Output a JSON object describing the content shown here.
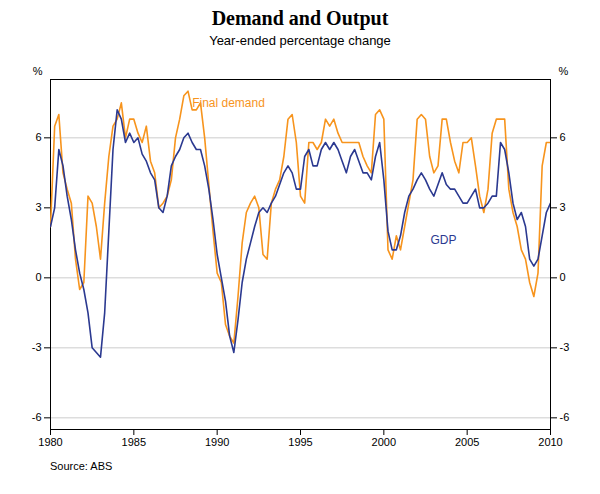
{
  "chart_data": {
    "type": "line",
    "title": "Demand and Output",
    "subtitle": "Year-ended percentage change",
    "source": "Source: ABS",
    "ylabel": "%",
    "y2label": "%",
    "xlim": [
      1980.0,
      2010.0
    ],
    "xticks": [
      1980,
      1985,
      1990,
      1995,
      2000,
      2005,
      2010
    ],
    "ylim": [
      -6.5,
      8.5
    ],
    "yticks": [
      -6,
      -3,
      0,
      3,
      6
    ],
    "y2lim": [
      -6.5,
      8.5
    ],
    "y2ticks": [
      -6,
      -3,
      0,
      3,
      6
    ],
    "grid": true,
    "x": [
      1980.0,
      1980.25,
      1980.5,
      1980.75,
      1981.0,
      1981.25,
      1981.5,
      1981.75,
      1982.0,
      1982.25,
      1982.5,
      1982.75,
      1983.0,
      1983.25,
      1983.5,
      1983.75,
      1984.0,
      1984.25,
      1984.5,
      1984.75,
      1985.0,
      1985.25,
      1985.5,
      1985.75,
      1986.0,
      1986.25,
      1986.5,
      1986.75,
      1987.0,
      1987.25,
      1987.5,
      1987.75,
      1988.0,
      1988.25,
      1988.5,
      1988.75,
      1989.0,
      1989.25,
      1989.5,
      1989.75,
      1990.0,
      1990.25,
      1990.5,
      1990.75,
      1991.0,
      1991.25,
      1991.5,
      1991.75,
      1992.0,
      1992.25,
      1992.5,
      1992.75,
      1993.0,
      1993.25,
      1993.5,
      1993.75,
      1994.0,
      1994.25,
      1994.5,
      1994.75,
      1995.0,
      1995.25,
      1995.5,
      1995.75,
      1996.0,
      1996.25,
      1996.5,
      1996.75,
      1997.0,
      1997.25,
      1997.5,
      1997.75,
      1998.0,
      1998.25,
      1998.5,
      1998.75,
      1999.0,
      1999.25,
      1999.5,
      1999.75,
      2000.0,
      2000.25,
      2000.5,
      2000.75,
      2001.0,
      2001.25,
      2001.5,
      2001.75,
      2002.0,
      2002.25,
      2002.5,
      2002.75,
      2003.0,
      2003.25,
      2003.5,
      2003.75,
      2004.0,
      2004.25,
      2004.5,
      2004.75,
      2005.0,
      2005.25,
      2005.5,
      2005.75,
      2006.0,
      2006.25,
      2006.5,
      2006.75,
      2007.0,
      2007.25,
      2007.5,
      2007.75,
      2008.0,
      2008.25,
      2008.5,
      2008.75,
      2009.0,
      2009.25,
      2009.5,
      2009.75,
      2010.0
    ],
    "series": [
      {
        "name": "Final demand",
        "color": "#f7941d",
        "values": [
          2.2,
          6.5,
          7.0,
          4.5,
          3.8,
          3.2,
          0.8,
          -0.5,
          -0.2,
          3.5,
          3.2,
          2.2,
          0.8,
          3.2,
          5.2,
          6.5,
          6.8,
          7.5,
          6.0,
          6.8,
          6.8,
          6.2,
          5.8,
          6.5,
          5.0,
          4.5,
          3.0,
          3.2,
          3.5,
          4.2,
          6.0,
          6.8,
          7.8,
          8.0,
          7.2,
          7.2,
          7.5,
          6.0,
          4.0,
          2.0,
          0.2,
          -0.2,
          -2.0,
          -2.5,
          -2.8,
          -0.8,
          1.5,
          2.8,
          3.2,
          3.5,
          3.0,
          1.0,
          0.8,
          3.2,
          3.8,
          4.2,
          5.2,
          6.8,
          7.0,
          5.8,
          3.5,
          3.2,
          5.8,
          5.8,
          5.5,
          5.8,
          6.8,
          6.5,
          6.8,
          6.2,
          5.8,
          5.8,
          5.8,
          5.8,
          5.8,
          5.2,
          4.8,
          4.5,
          7.0,
          7.2,
          6.8,
          1.2,
          0.8,
          1.8,
          1.2,
          2.2,
          3.2,
          4.2,
          6.8,
          7.0,
          6.8,
          5.2,
          4.5,
          4.8,
          6.8,
          6.8,
          5.8,
          5.0,
          4.5,
          5.8,
          5.8,
          6.0,
          4.8,
          3.5,
          2.8,
          3.8,
          6.2,
          6.8,
          6.8,
          6.8,
          3.8,
          2.8,
          2.2,
          1.2,
          0.8,
          -0.2,
          -0.8,
          0.2,
          4.8,
          5.8,
          5.8
        ]
      },
      {
        "name": "GDP",
        "color": "#2b3990",
        "values": [
          2.2,
          3.0,
          5.5,
          4.8,
          3.5,
          2.5,
          1.2,
          0.2,
          -0.5,
          -1.5,
          -3.0,
          -3.2,
          -3.4,
          -1.5,
          2.0,
          5.5,
          7.2,
          6.8,
          5.8,
          6.2,
          5.8,
          6.0,
          5.3,
          5.0,
          4.5,
          4.2,
          3.0,
          2.8,
          3.5,
          4.8,
          5.2,
          5.5,
          6.0,
          6.2,
          5.8,
          5.5,
          5.5,
          4.8,
          3.8,
          2.5,
          1.0,
          0.0,
          -1.0,
          -2.5,
          -3.2,
          -1.8,
          -0.2,
          0.8,
          1.5,
          2.2,
          2.8,
          3.0,
          2.8,
          3.2,
          3.5,
          4.0,
          4.5,
          4.8,
          4.5,
          3.8,
          3.8,
          5.2,
          5.5,
          4.8,
          4.8,
          5.5,
          5.8,
          5.5,
          5.8,
          5.5,
          5.0,
          4.5,
          5.2,
          5.5,
          5.0,
          4.5,
          4.5,
          4.2,
          5.2,
          5.8,
          4.2,
          2.0,
          1.2,
          1.2,
          1.8,
          2.8,
          3.5,
          3.8,
          4.2,
          4.5,
          4.2,
          3.8,
          3.5,
          4.0,
          4.5,
          4.0,
          3.8,
          3.8,
          3.5,
          3.2,
          3.2,
          3.5,
          3.8,
          3.0,
          3.0,
          3.2,
          3.5,
          3.5,
          5.8,
          5.5,
          4.5,
          3.2,
          2.5,
          2.8,
          2.2,
          0.8,
          0.5,
          0.8,
          1.8,
          2.8,
          3.2
        ]
      }
    ],
    "annotations": [
      {
        "text": "Final demand",
        "x": 1988.5,
        "y": 7.5,
        "color": "#f7941d"
      },
      {
        "text": "GDP",
        "x": 2002.8,
        "y": 1.6,
        "color": "#2b3990"
      }
    ]
  }
}
